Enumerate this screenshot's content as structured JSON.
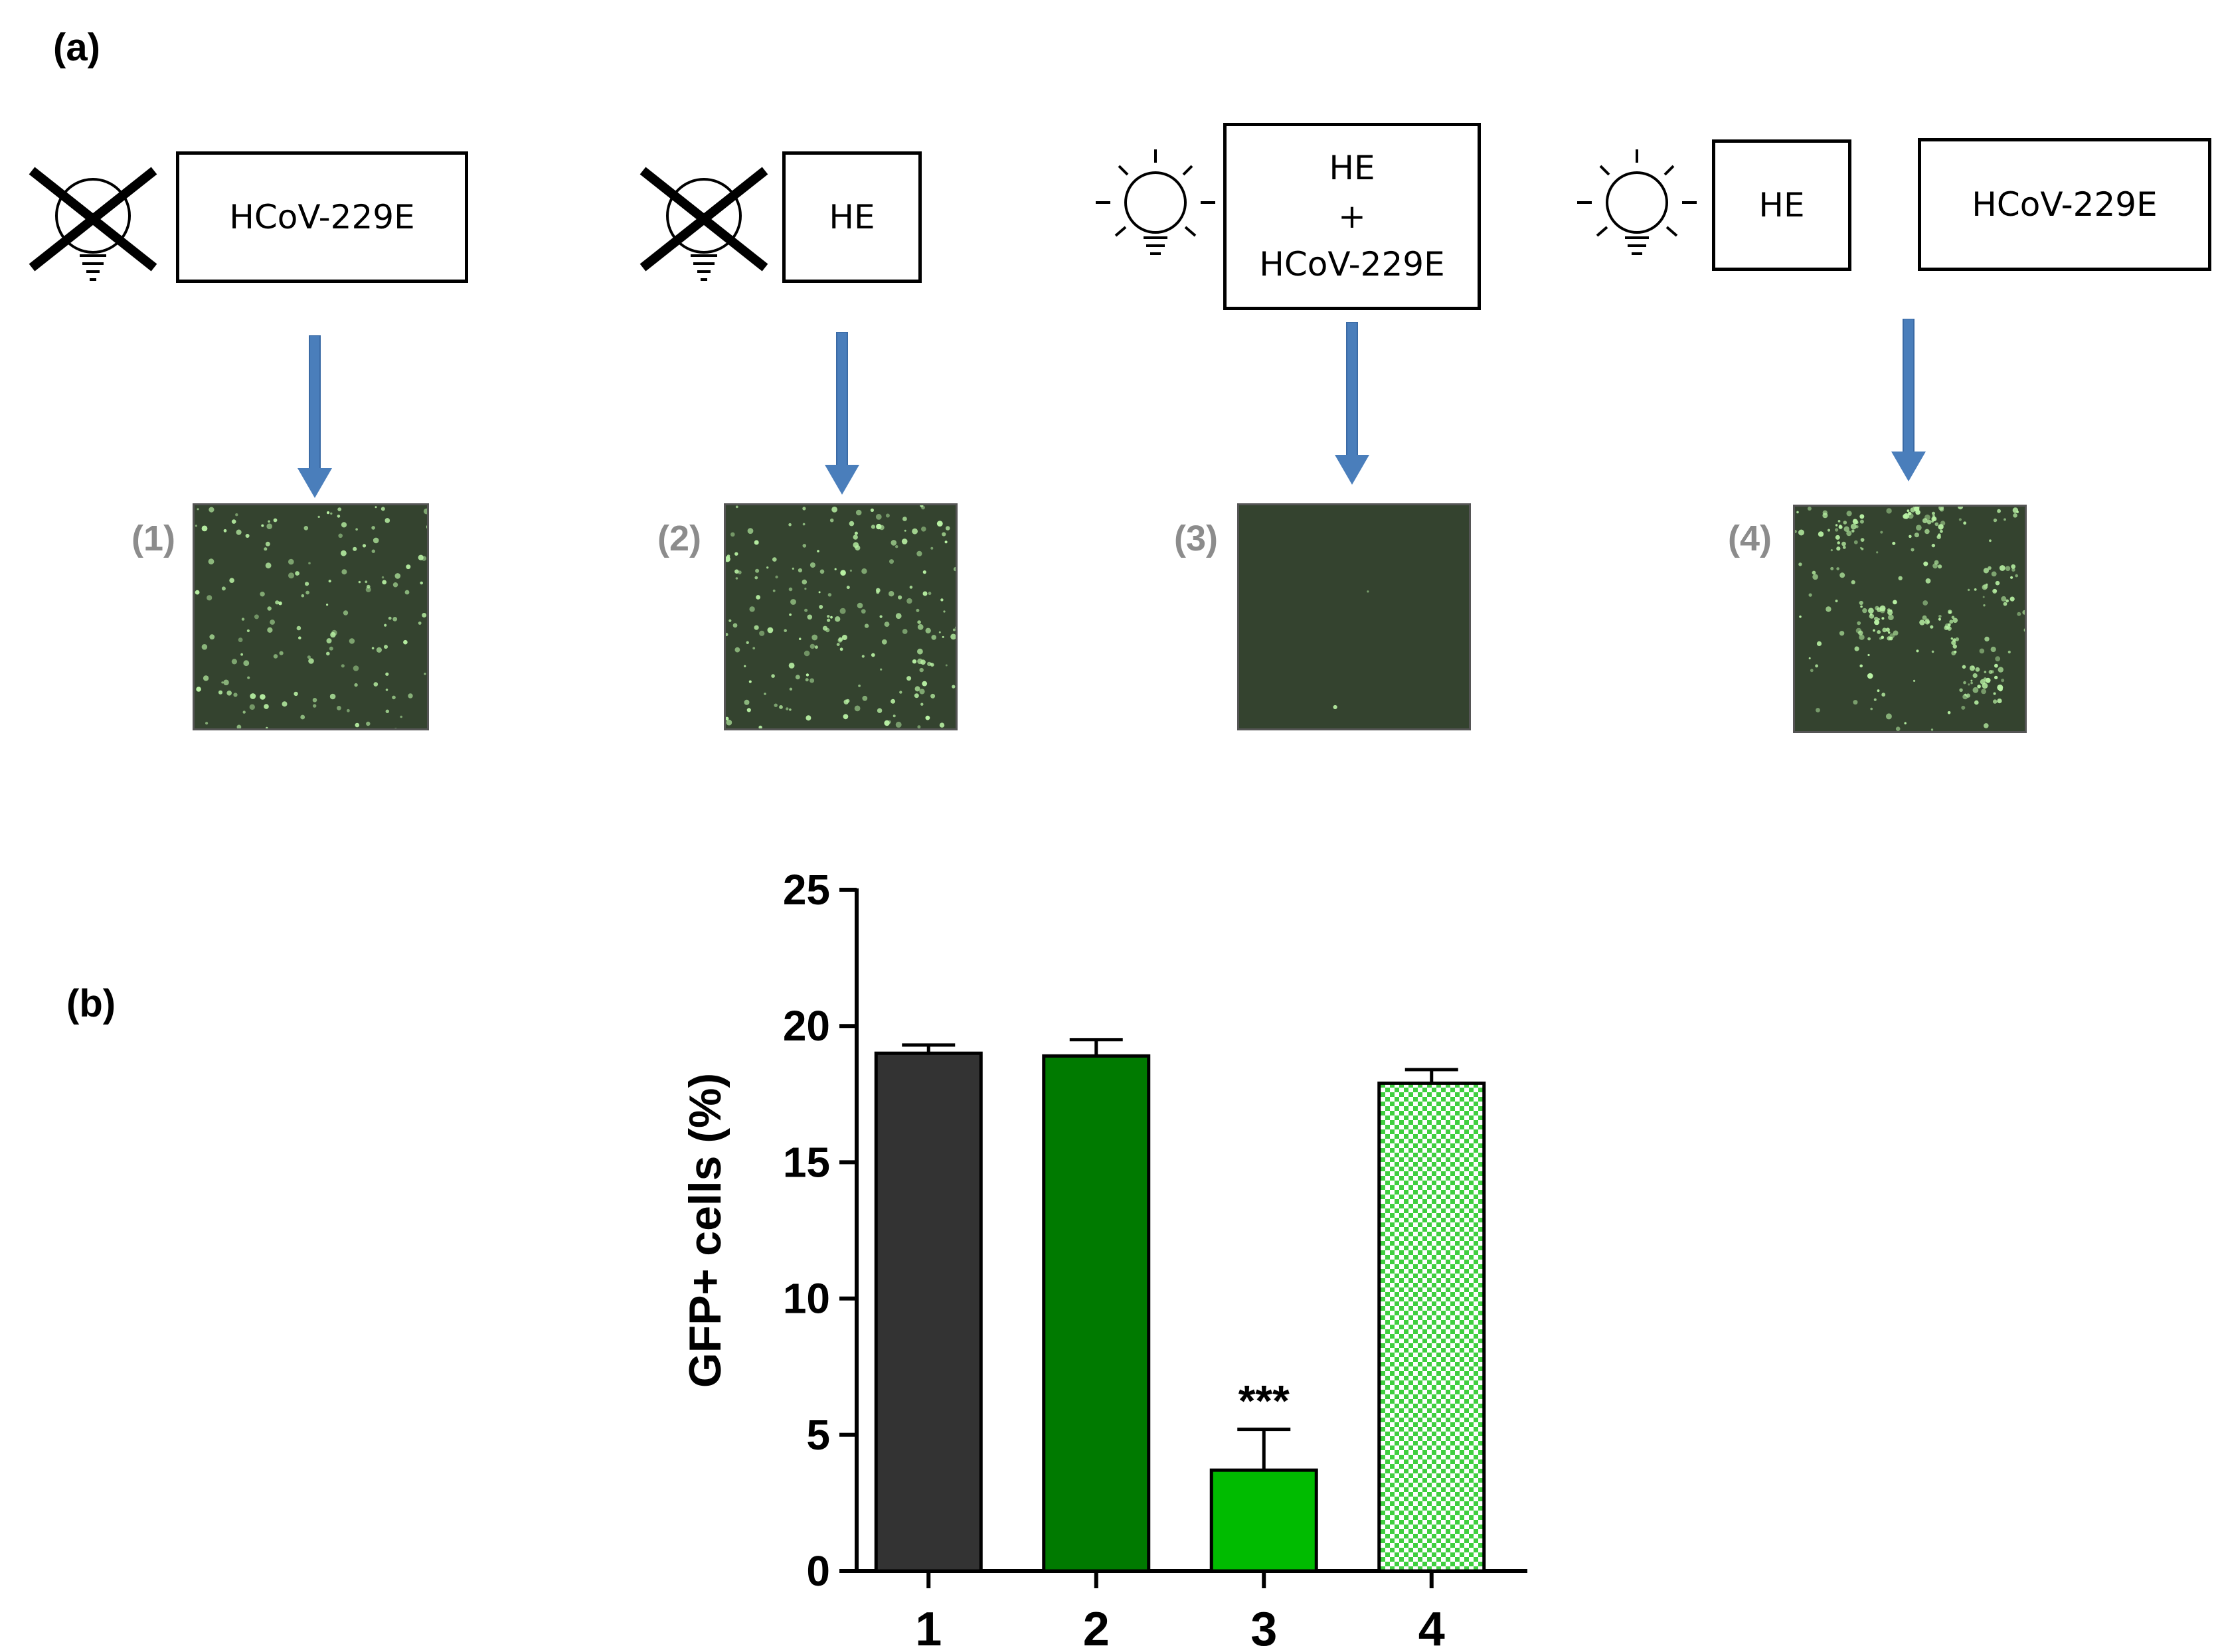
{
  "panel_a": {
    "label": "(a)",
    "conditions": [
      {
        "light": "off",
        "boxes": [
          "HCoV-229E"
        ],
        "image_label": "(1)"
      },
      {
        "light": "off",
        "boxes": [
          "HE"
        ],
        "image_label": "(2)"
      },
      {
        "light": "on",
        "boxes": [
          "HE\n+\nHCoV-229E"
        ],
        "image_label": "(3)"
      },
      {
        "light": "on",
        "boxes": [
          "HE",
          "HCoV-229E"
        ],
        "image_label": "(4)"
      }
    ],
    "icons": [
      "crossed-light-bulb-icon",
      "light-bulb-on-icon",
      "down-arrow-icon"
    ],
    "colors": {
      "arrow": "#4a7ebb",
      "micro_bg": "#34432f",
      "cell": "#b9f2a4"
    }
  },
  "panel_b": {
    "label": "(b)"
  },
  "chart_data": {
    "type": "bar",
    "categories": [
      "1",
      "2",
      "3",
      "4"
    ],
    "values": [
      19.0,
      18.9,
      3.7,
      17.9
    ],
    "errors": [
      0.3,
      0.6,
      1.5,
      0.5
    ],
    "annotations": [
      {
        "category": "3",
        "text": "***"
      }
    ],
    "ylabel": "GFP+ cells (%)",
    "xlabel": "",
    "ylim": [
      0,
      25
    ],
    "yticks": [
      0,
      5,
      10,
      15,
      20,
      25
    ],
    "colors": [
      "#333333",
      "#007a00",
      "#00bb00",
      "#7fdc7f"
    ],
    "patterns": [
      "solid",
      "solid",
      "solid",
      "checker"
    ],
    "grid": false
  }
}
